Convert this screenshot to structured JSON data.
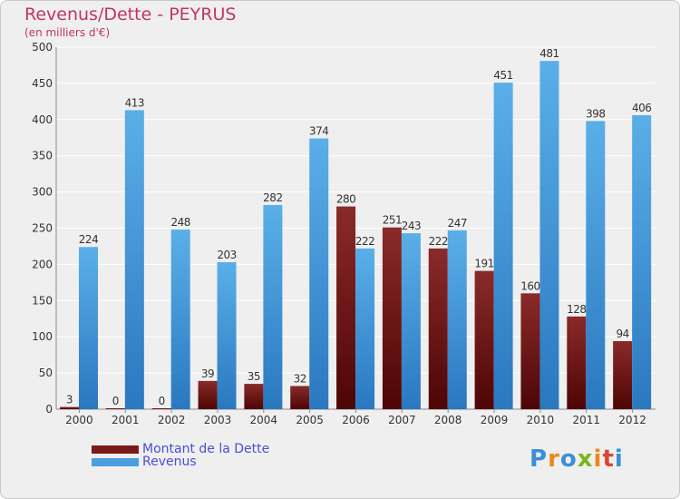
{
  "header": {
    "title": "Revenus/Dette - PEYRUS",
    "subtitle": "(en milliers d'€)"
  },
  "legend": {
    "items": [
      {
        "label": "Montant de la Dette",
        "color": "#7a1a1a"
      },
      {
        "label": "Revenus",
        "color": "#4a9fe0"
      }
    ]
  },
  "logo": {
    "letters": [
      {
        "ch": "P",
        "color": "#3a8fd8"
      },
      {
        "ch": "r",
        "color": "#e8891c"
      },
      {
        "ch": "o",
        "color": "#3a8fd8"
      },
      {
        "ch": "x",
        "color": "#7ab51d"
      },
      {
        "ch": "i",
        "color": "#e8891c"
      },
      {
        "ch": "t",
        "color": "#d8463a"
      },
      {
        "ch": "i",
        "color": "#3a8fd8"
      }
    ]
  },
  "colors": {
    "dette_top": "#8a2a2a",
    "dette_bottom": "#4e0505",
    "revenus_top": "#5aafe8",
    "revenus_bottom": "#2a78c0",
    "grid": "#ffffff",
    "axis_text": "#333333"
  },
  "chart_data": {
    "type": "bar",
    "title": "Revenus/Dette - PEYRUS",
    "subtitle": "(en milliers d'€)",
    "categories": [
      "2000",
      "2001",
      "2002",
      "2003",
      "2004",
      "2005",
      "2006",
      "2007",
      "2008",
      "2009",
      "2010",
      "2011",
      "2012"
    ],
    "series": [
      {
        "name": "Montant de la Dette",
        "values": [
          3,
          0,
          0,
          39,
          35,
          32,
          280,
          251,
          222,
          191,
          160,
          128,
          94
        ]
      },
      {
        "name": "Revenus",
        "values": [
          224,
          413,
          248,
          203,
          282,
          374,
          222,
          243,
          247,
          451,
          481,
          398,
          406
        ]
      }
    ],
    "ylim": [
      0,
      500
    ],
    "yticks": [
      0,
      50,
      100,
      150,
      200,
      250,
      300,
      350,
      400,
      450,
      500
    ],
    "grid": true,
    "legend_position": "bottom-left"
  }
}
